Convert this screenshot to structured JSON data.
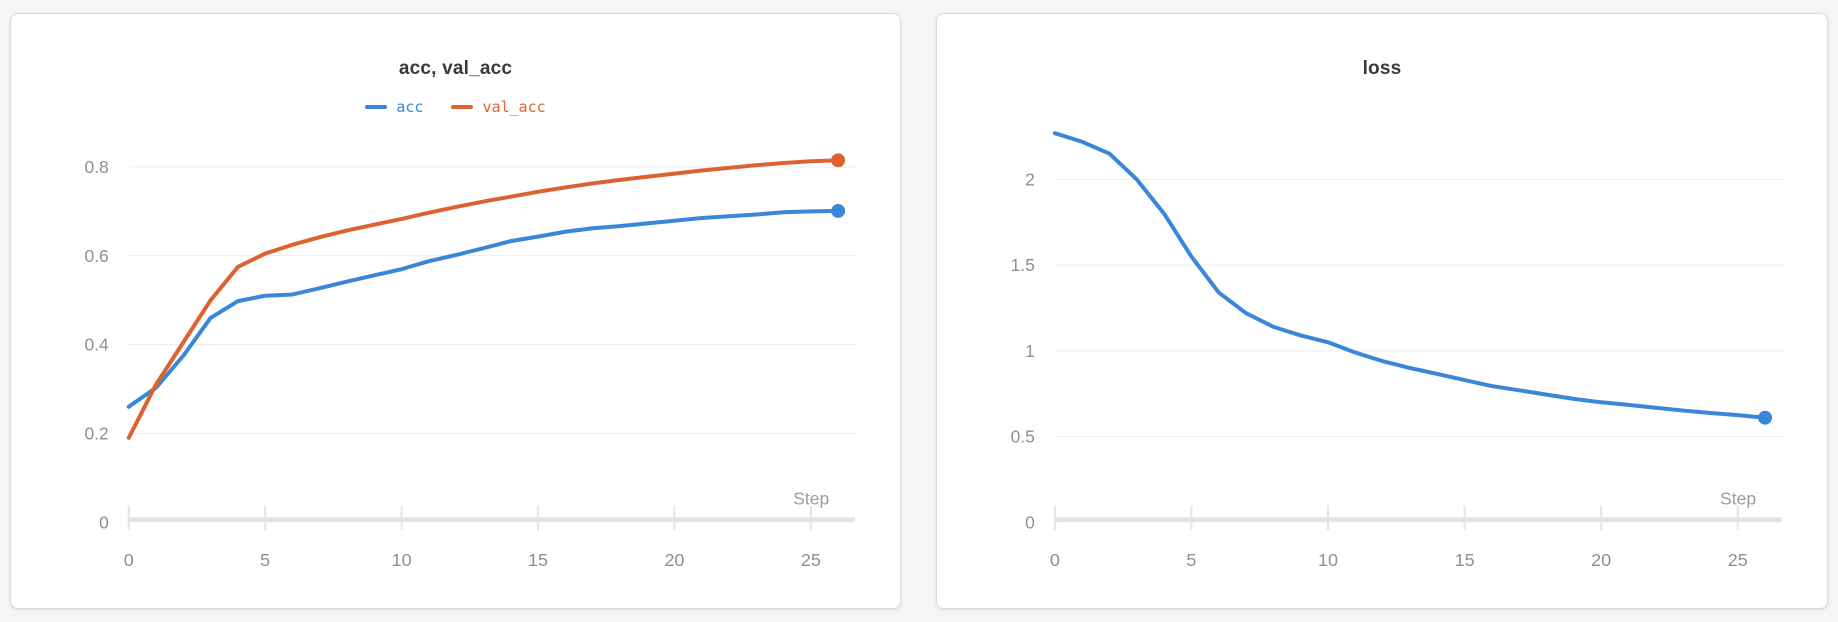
{
  "chart_data": [
    {
      "type": "line",
      "title": "acc, val_acc",
      "xlabel": "Step",
      "x": [
        0,
        1,
        2,
        3,
        4,
        5,
        6,
        7,
        8,
        9,
        10,
        11,
        12,
        13,
        14,
        15,
        16,
        17,
        18,
        19,
        20,
        21,
        22,
        23,
        24,
        25,
        26
      ],
      "series": [
        {
          "name": "acc",
          "color": "#3a87d9",
          "values": [
            0.26,
            0.303,
            0.375,
            0.46,
            0.498,
            0.51,
            0.513,
            0.527,
            0.542,
            0.556,
            0.57,
            0.588,
            0.602,
            0.617,
            0.633,
            0.643,
            0.654,
            0.662,
            0.667,
            0.673,
            0.679,
            0.685,
            0.689,
            0.693,
            0.698,
            0.7,
            0.701
          ]
        },
        {
          "name": "val_acc",
          "color": "#de6230",
          "values": [
            0.19,
            0.31,
            0.405,
            0.5,
            0.575,
            0.605,
            0.625,
            0.642,
            0.657,
            0.67,
            0.683,
            0.697,
            0.71,
            0.722,
            0.733,
            0.744,
            0.754,
            0.763,
            0.771,
            0.778,
            0.785,
            0.792,
            0.798,
            0.804,
            0.809,
            0.813,
            0.815
          ]
        }
      ],
      "legend_position": "top-center",
      "xticks": [
        0,
        5,
        10,
        15,
        20,
        25
      ],
      "yticks": [
        0,
        0.2,
        0.4,
        0.6,
        0.8
      ],
      "xlim": [
        0,
        26
      ],
      "ylim": [
        0,
        0.92
      ],
      "grid": true,
      "end_marker": true
    },
    {
      "type": "line",
      "title": "loss",
      "xlabel": "Step",
      "x": [
        0,
        1,
        2,
        3,
        4,
        5,
        6,
        7,
        8,
        9,
        10,
        11,
        12,
        13,
        14,
        15,
        16,
        17,
        18,
        19,
        20,
        21,
        22,
        23,
        24,
        25,
        26
      ],
      "series": [
        {
          "name": "loss",
          "color": "#3a87d9",
          "values": [
            2.27,
            2.22,
            2.15,
            2.0,
            1.8,
            1.55,
            1.34,
            1.22,
            1.14,
            1.09,
            1.05,
            0.99,
            0.94,
            0.9,
            0.865,
            0.83,
            0.795,
            0.77,
            0.745,
            0.72,
            0.7,
            0.685,
            0.668,
            0.652,
            0.638,
            0.625,
            0.61
          ]
        }
      ],
      "legend_position": "none",
      "xticks": [
        0,
        5,
        10,
        15,
        20,
        25
      ],
      "yticks": [
        0,
        0.5,
        1,
        1.5,
        2
      ],
      "xlim": [
        0,
        26
      ],
      "ylim": [
        0,
        2.384
      ],
      "grid": true,
      "end_marker": true
    }
  ],
  "colors": {
    "accent_blue": "#3a87d9",
    "accent_orange": "#de6230",
    "grid_line": "#ececee",
    "axis_strip": "#e3e3e6",
    "tick_mark": "#e4e4e7",
    "tick_text": "#8a8f98",
    "step_text": "#989da5",
    "title_text": "#373b3f",
    "panel_bg": "#ffffff",
    "panel_border": "#dcdcde",
    "page_bg": "#f5f5f7"
  }
}
